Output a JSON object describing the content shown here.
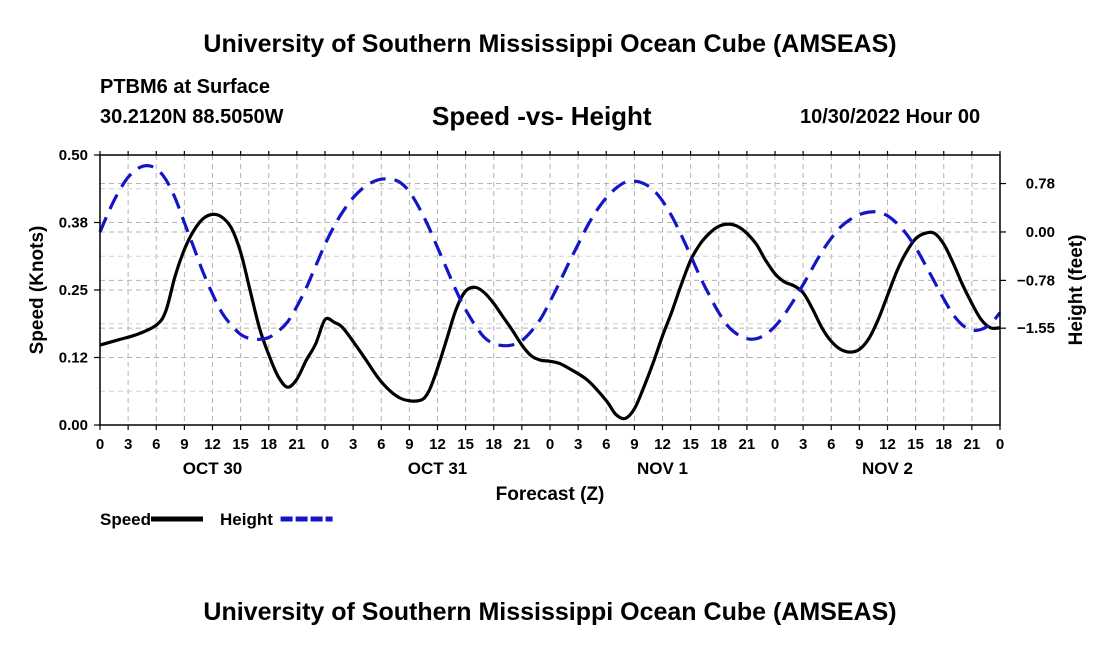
{
  "header": {
    "title": "University of Southern Mississippi Ocean Cube (AMSEAS)",
    "station": "PTBM6 at Surface",
    "coords": "30.2120N  88.5050W",
    "subtitle": "Speed -vs- Height",
    "datetime": "10/30/2022 Hour 00"
  },
  "footer": {
    "title": "University of Southern Mississippi Ocean Cube (AMSEAS)"
  },
  "chart_data": {
    "type": "line",
    "xlabel": "Forecast (Z)",
    "ylabel_left": "Speed (Knots)",
    "ylabel_right": "Height (feet)",
    "x_range_hours": [
      0,
      96
    ],
    "x_ticks": [
      "0",
      "3",
      "6",
      "9",
      "12",
      "15",
      "18",
      "21",
      "0",
      "3",
      "6",
      "9",
      "12",
      "15",
      "18",
      "21",
      "0",
      "3",
      "6",
      "9",
      "12",
      "15",
      "18",
      "21",
      "0",
      "3",
      "6",
      "9",
      "12",
      "15",
      "18",
      "21",
      "0"
    ],
    "day_labels": [
      {
        "hour": 12,
        "label": "OCT 30"
      },
      {
        "hour": 36,
        "label": "OCT 31"
      },
      {
        "hour": 60,
        "label": "NOV 1"
      },
      {
        "hour": 84,
        "label": "NOV 2"
      }
    ],
    "left_axis": {
      "ylim": [
        0,
        0.5
      ],
      "ticks": [
        "0.00",
        "0.12",
        "0.25",
        "0.38",
        "0.50"
      ],
      "tick_values": [
        0,
        0.125,
        0.25,
        0.375,
        0.5
      ]
    },
    "right_axis": {
      "ylim": [
        -3.11,
        1.24
      ],
      "ticks": [
        "0.78",
        "0.00",
        "−0.78",
        "−1.55"
      ],
      "tick_values": [
        0.78,
        0.0,
        -0.78,
        -1.55
      ]
    },
    "grid": true,
    "series": [
      {
        "name": "Speed",
        "axis": "left",
        "color": "#000000",
        "style": "solid",
        "x": [
          0,
          2,
          4,
          6,
          7,
          8,
          9,
          10,
          11,
          12,
          13,
          14,
          15,
          16,
          17,
          18,
          19,
          20,
          21,
          22,
          23,
          24,
          25,
          26,
          28,
          30,
          32,
          34,
          35,
          36,
          37,
          38,
          39,
          40,
          41,
          42,
          43,
          44,
          45,
          46,
          47,
          48,
          49,
          50,
          52,
          54,
          55,
          56,
          57,
          58,
          59,
          60,
          61,
          62,
          63,
          64,
          65,
          66,
          67,
          68,
          69,
          70,
          71,
          72,
          73,
          74,
          75,
          76,
          77,
          78,
          79,
          80,
          81,
          82,
          83,
          84,
          85,
          86,
          87,
          88,
          89,
          90,
          91,
          92,
          93,
          94,
          95,
          96
        ],
        "values": [
          0.148,
          0.158,
          0.168,
          0.185,
          0.21,
          0.275,
          0.325,
          0.36,
          0.382,
          0.39,
          0.385,
          0.365,
          0.32,
          0.25,
          0.18,
          0.13,
          0.09,
          0.07,
          0.085,
          0.12,
          0.15,
          0.195,
          0.19,
          0.178,
          0.13,
          0.08,
          0.05,
          0.045,
          0.06,
          0.105,
          0.16,
          0.215,
          0.248,
          0.255,
          0.245,
          0.225,
          0.2,
          0.175,
          0.148,
          0.128,
          0.12,
          0.118,
          0.114,
          0.105,
          0.083,
          0.045,
          0.02,
          0.012,
          0.03,
          0.07,
          0.115,
          0.165,
          0.21,
          0.26,
          0.305,
          0.335,
          0.355,
          0.368,
          0.372,
          0.368,
          0.355,
          0.335,
          0.305,
          0.28,
          0.265,
          0.258,
          0.245,
          0.215,
          0.18,
          0.155,
          0.14,
          0.135,
          0.14,
          0.16,
          0.195,
          0.24,
          0.285,
          0.32,
          0.345,
          0.355,
          0.355,
          0.335,
          0.3,
          0.26,
          0.225,
          0.195,
          0.18,
          0.18
        ]
      },
      {
        "name": "Height",
        "axis": "right",
        "color": "#1515c8",
        "style": "dashed",
        "x": [
          0,
          1,
          2,
          3,
          4,
          5,
          6,
          7,
          8,
          9,
          10,
          11,
          12,
          13,
          14,
          15,
          16,
          17,
          18,
          19,
          20,
          21,
          22,
          23,
          24,
          25,
          26,
          27,
          28,
          29,
          30,
          31,
          32,
          33,
          34,
          35,
          36,
          37,
          38,
          39,
          40,
          41,
          42,
          43,
          44,
          45,
          46,
          47,
          48,
          49,
          50,
          51,
          52,
          53,
          54,
          55,
          56,
          57,
          58,
          59,
          60,
          61,
          62,
          63,
          64,
          65,
          66,
          67,
          68,
          69,
          70,
          71,
          72,
          73,
          74,
          75,
          76,
          77,
          78,
          79,
          80,
          81,
          82,
          83,
          84,
          85,
          86,
          87,
          88,
          89,
          90,
          91,
          92,
          93,
          94,
          95,
          96
        ],
        "values": [
          0.0,
          0.35,
          0.65,
          0.88,
          1.02,
          1.07,
          1.02,
          0.85,
          0.55,
          0.15,
          -0.25,
          -0.65,
          -1.0,
          -1.3,
          -1.5,
          -1.65,
          -1.72,
          -1.73,
          -1.7,
          -1.6,
          -1.45,
          -1.2,
          -0.9,
          -0.55,
          -0.2,
          0.1,
          0.35,
          0.55,
          0.7,
          0.8,
          0.85,
          0.85,
          0.8,
          0.65,
          0.4,
          0.1,
          -0.25,
          -0.6,
          -0.95,
          -1.25,
          -1.5,
          -1.7,
          -1.8,
          -1.83,
          -1.82,
          -1.75,
          -1.6,
          -1.4,
          -1.12,
          -0.82,
          -0.5,
          -0.2,
          0.1,
          0.35,
          0.55,
          0.7,
          0.8,
          0.82,
          0.78,
          0.68,
          0.5,
          0.25,
          -0.05,
          -0.38,
          -0.72,
          -1.02,
          -1.3,
          -1.52,
          -1.65,
          -1.72,
          -1.72,
          -1.65,
          -1.52,
          -1.33,
          -1.1,
          -0.85,
          -0.58,
          -0.32,
          -0.1,
          0.08,
          0.2,
          0.28,
          0.32,
          0.32,
          0.26,
          0.14,
          -0.03,
          -0.25,
          -0.52,
          -0.8,
          -1.08,
          -1.33,
          -1.5,
          -1.58,
          -1.57,
          -1.48,
          -1.3
        ]
      }
    ],
    "legend": [
      {
        "label": "Speed",
        "color": "#000000",
        "style": "solid"
      },
      {
        "label": "Height",
        "color": "#1515c8",
        "style": "dashed"
      }
    ]
  }
}
